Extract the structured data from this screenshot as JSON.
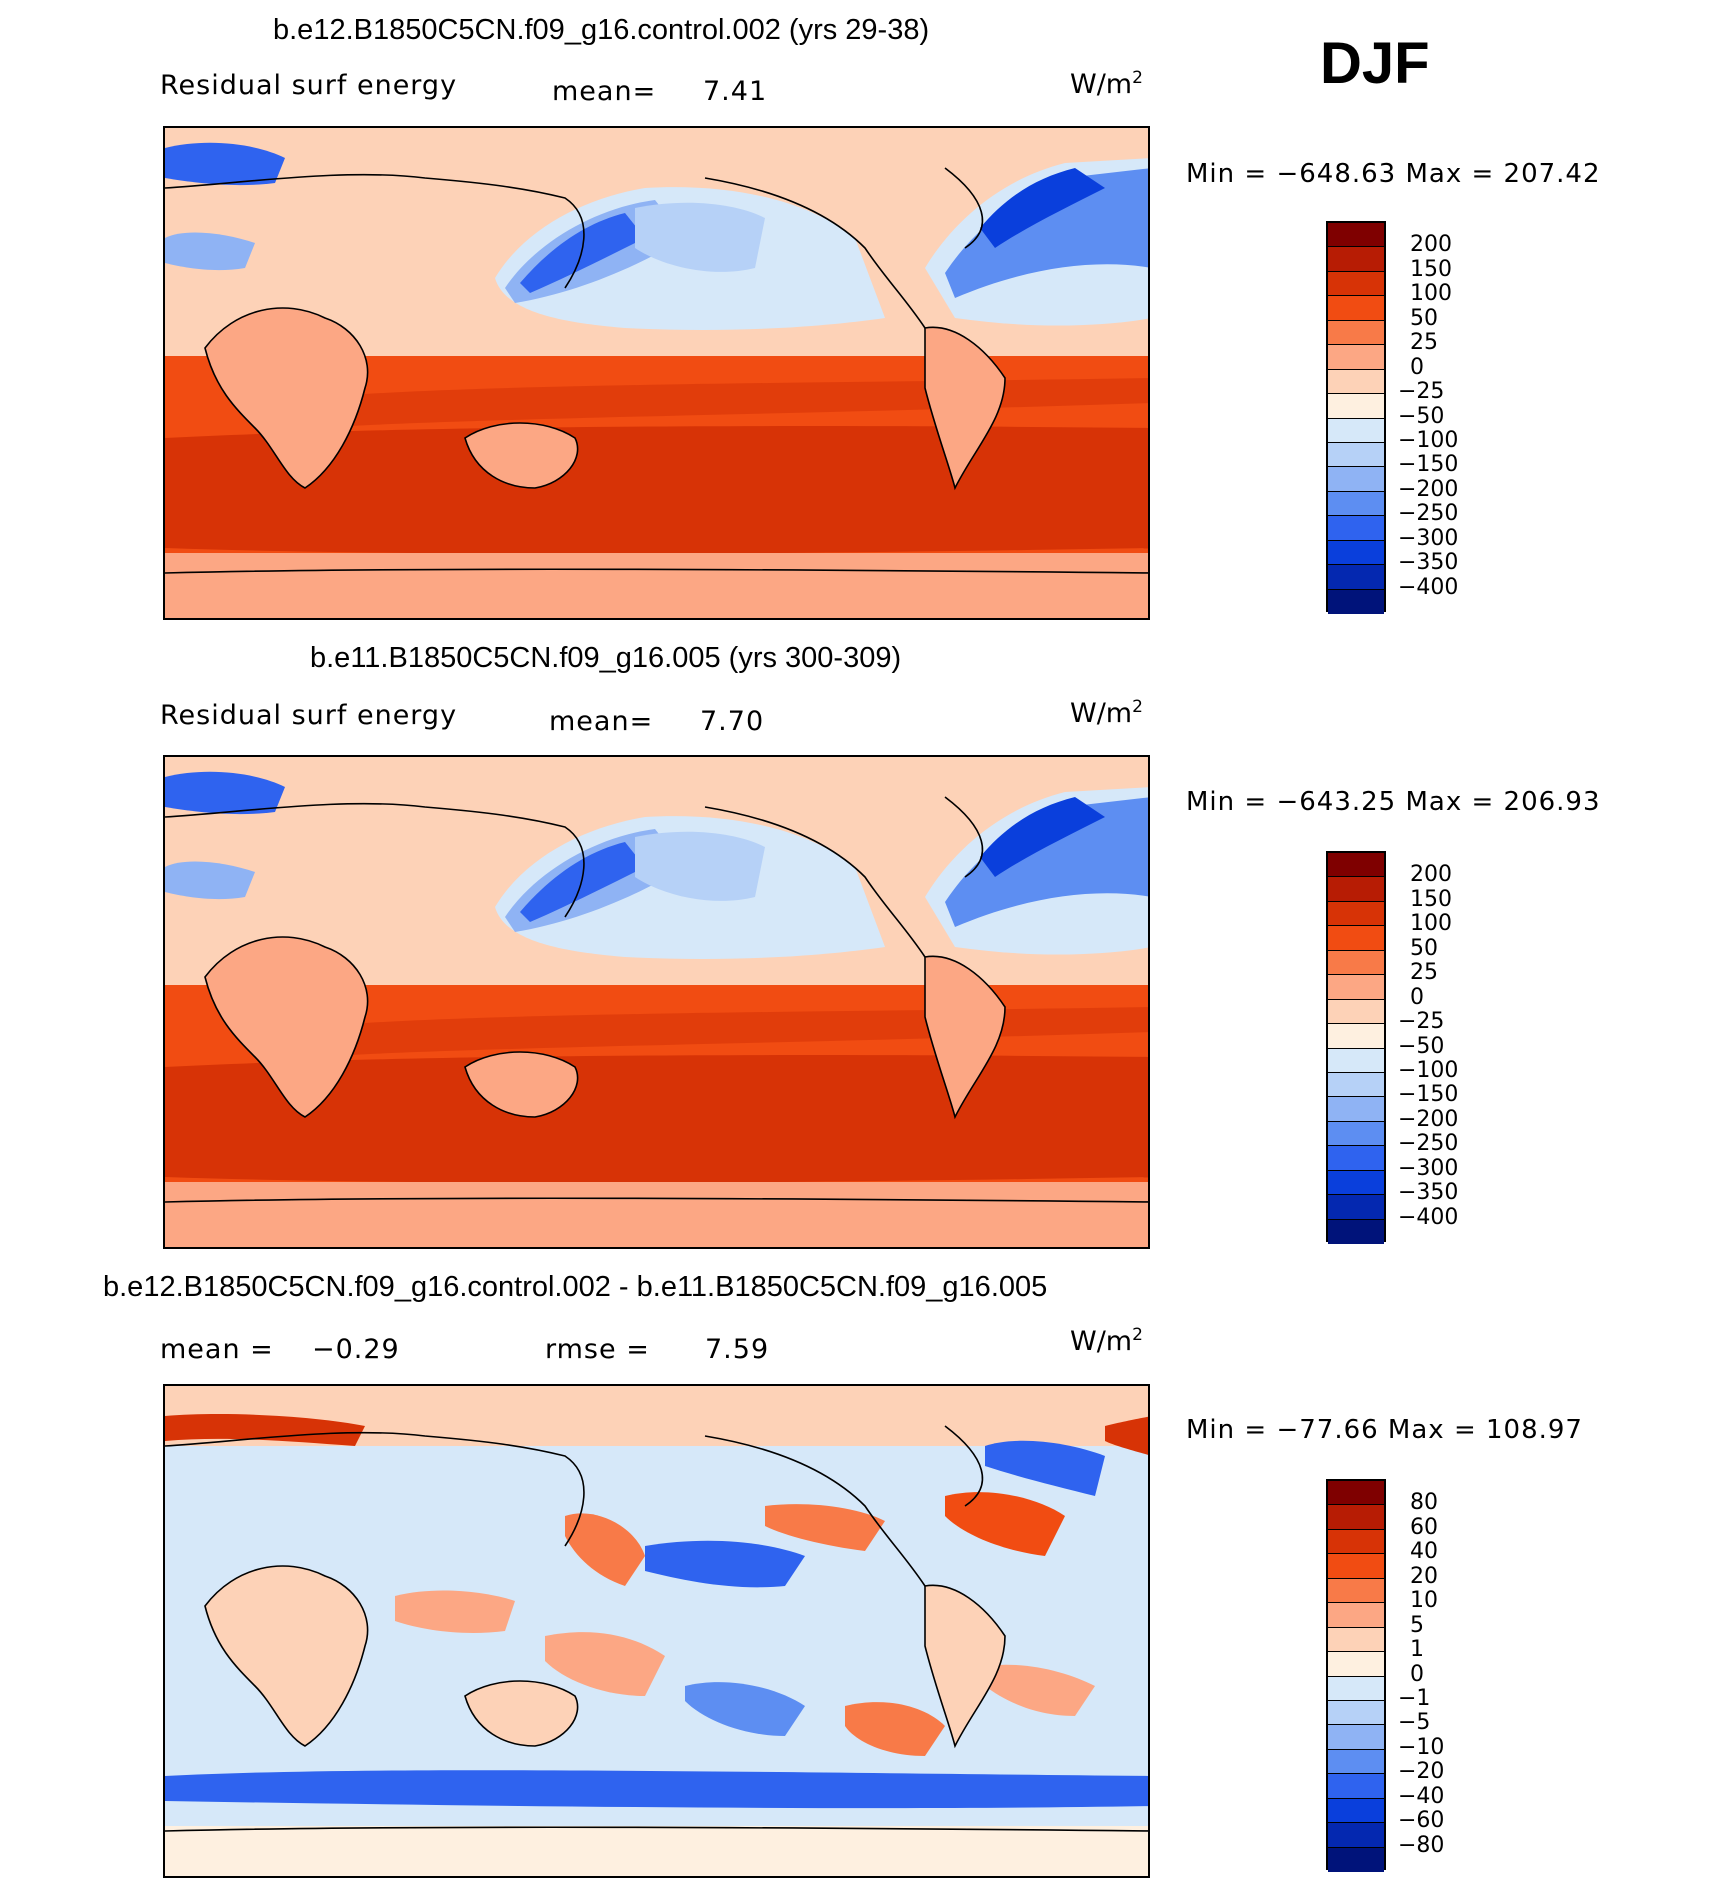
{
  "season": "DJF",
  "panels": [
    {
      "title": "b.e12.B1850C5CN.f09_g16.control.002 (yrs 29-38)",
      "left_label": "Residual surf energy",
      "stat1": "mean=",
      "stat1_value": "7.41",
      "unit_base": "W/m",
      "unit_exp": "2",
      "minmax": "Min = −648.63 Max = 207.42"
    },
    {
      "title": "b.e11.B1850C5CN.f09_g16.005 (yrs 300-309)",
      "left_label": "Residual surf energy",
      "stat1": "mean=",
      "stat1_value": "7.70",
      "unit_base": "W/m",
      "unit_exp": "2",
      "minmax": "Min = −643.25 Max = 206.93"
    },
    {
      "title": "b.e12.B1850C5CN.f09_g16.control.002 - b.e11.B1850C5CN.f09_g16.005",
      "stat1": "mean =",
      "stat1_value": "−0.29",
      "stat2": "rmse =",
      "stat2_value": "7.59",
      "unit_base": "W/m",
      "unit_exp": "2",
      "minmax": "Min = −77.66 Max = 108.97"
    }
  ],
  "colorbars": {
    "abs": {
      "labels": [
        "200",
        "150",
        "100",
        "50",
        "25",
        "0",
        "−25",
        "−50",
        "−100",
        "−150",
        "−200",
        "−250",
        "−300",
        "−350",
        "−400"
      ],
      "colors": [
        "#7f0000",
        "#b71c04",
        "#d73306",
        "#f14c12",
        "#f87a48",
        "#fca784",
        "#fdd2b7",
        "#fef0e0",
        "#d6e8f9",
        "#b6d1f7",
        "#8fb3f4",
        "#5d8ef2",
        "#2f63ef",
        "#0a3fdc",
        "#0428b0",
        "#00137a"
      ]
    },
    "diff": {
      "labels": [
        "80",
        "60",
        "40",
        "20",
        "10",
        "5",
        "1",
        "0",
        "−1",
        "−5",
        "−10",
        "−20",
        "−40",
        "−60",
        "−80"
      ],
      "colors": [
        "#7f0000",
        "#b71c04",
        "#d73306",
        "#f14c12",
        "#f87a48",
        "#fca784",
        "#fdd2b7",
        "#fef0e0",
        "#d6e8f9",
        "#b6d1f7",
        "#8fb3f4",
        "#5d8ef2",
        "#2f63ef",
        "#0a3fdc",
        "#0428b0",
        "#00137a"
      ]
    }
  }
}
